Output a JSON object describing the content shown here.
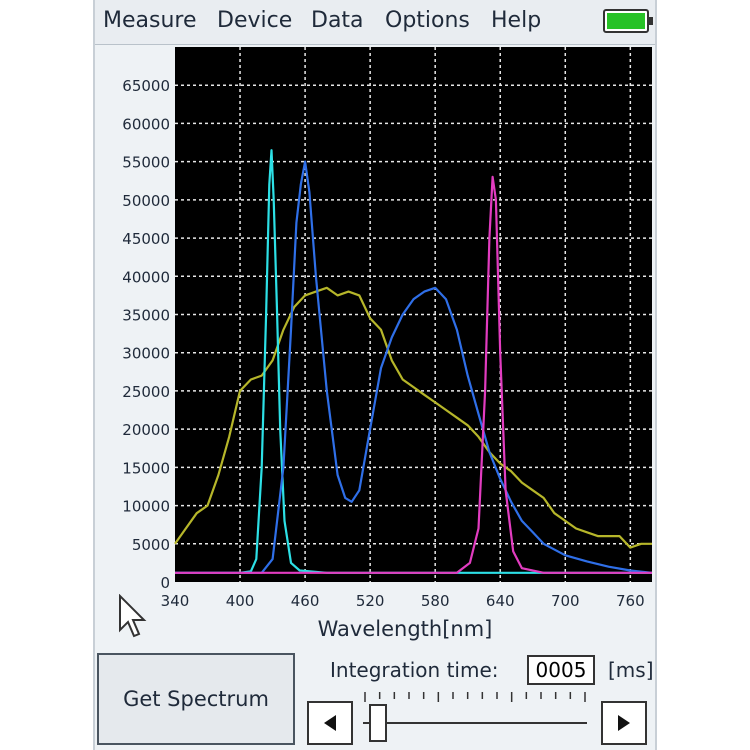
{
  "menu": {
    "items": [
      "Measure",
      "Device",
      "Data",
      "Options",
      "Help"
    ]
  },
  "battery": {
    "level": 1.0,
    "color": "#27c227"
  },
  "controls": {
    "get_spectrum_label": "Get Spectrum",
    "integration_label": "Integration time:",
    "integration_value": "0005",
    "integration_unit": "[ms]",
    "slider_value": 0.03,
    "left_icon": "triangle-left-icon",
    "right_icon": "triangle-right-icon"
  },
  "chart_data": {
    "type": "line",
    "title": "",
    "xlabel": "Wavelength[nm]",
    "ylabel": "",
    "xlim": [
      340,
      780
    ],
    "ylim": [
      0,
      70000
    ],
    "x_ticks": [
      340,
      400,
      460,
      520,
      580,
      640,
      700,
      760
    ],
    "y_ticks": [
      0,
      5000,
      10000,
      15000,
      20000,
      25000,
      30000,
      35000,
      40000,
      45000,
      50000,
      55000,
      60000,
      65000
    ],
    "grid": true,
    "background": "#000000",
    "series": [
      {
        "color": "#b6b62a",
        "points": [
          [
            340,
            5000
          ],
          [
            350,
            7000
          ],
          [
            360,
            9000
          ],
          [
            370,
            10000
          ],
          [
            380,
            14000
          ],
          [
            390,
            19000
          ],
          [
            400,
            25000
          ],
          [
            410,
            26500
          ],
          [
            420,
            27000
          ],
          [
            430,
            29000
          ],
          [
            440,
            33000
          ],
          [
            450,
            36000
          ],
          [
            460,
            37500
          ],
          [
            470,
            38000
          ],
          [
            480,
            38500
          ],
          [
            490,
            37500
          ],
          [
            500,
            38000
          ],
          [
            510,
            37500
          ],
          [
            520,
            34500
          ],
          [
            530,
            33000
          ],
          [
            540,
            29000
          ],
          [
            550,
            26500
          ],
          [
            560,
            25500
          ],
          [
            570,
            24500
          ],
          [
            580,
            23500
          ],
          [
            590,
            22500
          ],
          [
            600,
            21500
          ],
          [
            610,
            20500
          ],
          [
            620,
            19000
          ],
          [
            630,
            17000
          ],
          [
            640,
            15500
          ],
          [
            650,
            14500
          ],
          [
            660,
            13000
          ],
          [
            670,
            12000
          ],
          [
            680,
            11000
          ],
          [
            690,
            9000
          ],
          [
            700,
            8000
          ],
          [
            710,
            7000
          ],
          [
            720,
            6500
          ],
          [
            730,
            6000
          ],
          [
            740,
            6000
          ],
          [
            750,
            6000
          ],
          [
            760,
            4500
          ],
          [
            770,
            5000
          ],
          [
            780,
            5000
          ]
        ]
      },
      {
        "color": "#2de0e6",
        "points": [
          [
            340,
            1200
          ],
          [
            400,
            1200
          ],
          [
            410,
            1400
          ],
          [
            415,
            3000
          ],
          [
            420,
            15000
          ],
          [
            424,
            35000
          ],
          [
            427,
            52000
          ],
          [
            429,
            56500
          ],
          [
            431,
            50000
          ],
          [
            434,
            36000
          ],
          [
            437,
            20000
          ],
          [
            441,
            8000
          ],
          [
            447,
            2500
          ],
          [
            455,
            1500
          ],
          [
            480,
            1200
          ],
          [
            600,
            1200
          ],
          [
            780,
            1200
          ]
        ]
      },
      {
        "color": "#2f6fe8",
        "points": [
          [
            340,
            1200
          ],
          [
            420,
            1200
          ],
          [
            430,
            3000
          ],
          [
            440,
            15000
          ],
          [
            447,
            33000
          ],
          [
            452,
            47000
          ],
          [
            456,
            52000
          ],
          [
            460,
            55000
          ],
          [
            464,
            51000
          ],
          [
            470,
            40000
          ],
          [
            480,
            25000
          ],
          [
            490,
            14000
          ],
          [
            497,
            11000
          ],
          [
            503,
            10500
          ],
          [
            510,
            12000
          ],
          [
            520,
            20000
          ],
          [
            530,
            28000
          ],
          [
            540,
            32000
          ],
          [
            550,
            35000
          ],
          [
            560,
            37000
          ],
          [
            570,
            38000
          ],
          [
            580,
            38500
          ],
          [
            590,
            37000
          ],
          [
            600,
            33000
          ],
          [
            610,
            27000
          ],
          [
            620,
            22000
          ],
          [
            630,
            17000
          ],
          [
            640,
            13500
          ],
          [
            650,
            10500
          ],
          [
            660,
            8000
          ],
          [
            670,
            6500
          ],
          [
            680,
            5000
          ],
          [
            700,
            3500
          ],
          [
            720,
            2700
          ],
          [
            740,
            2000
          ],
          [
            760,
            1500
          ],
          [
            780,
            1200
          ]
        ]
      },
      {
        "color": "#e23cc0",
        "points": [
          [
            340,
            1200
          ],
          [
            600,
            1200
          ],
          [
            612,
            2500
          ],
          [
            620,
            7000
          ],
          [
            626,
            25000
          ],
          [
            630,
            45000
          ],
          [
            633,
            53000
          ],
          [
            636,
            50000
          ],
          [
            640,
            30000
          ],
          [
            645,
            12000
          ],
          [
            652,
            4000
          ],
          [
            660,
            1800
          ],
          [
            680,
            1200
          ],
          [
            780,
            1200
          ]
        ]
      }
    ]
  }
}
